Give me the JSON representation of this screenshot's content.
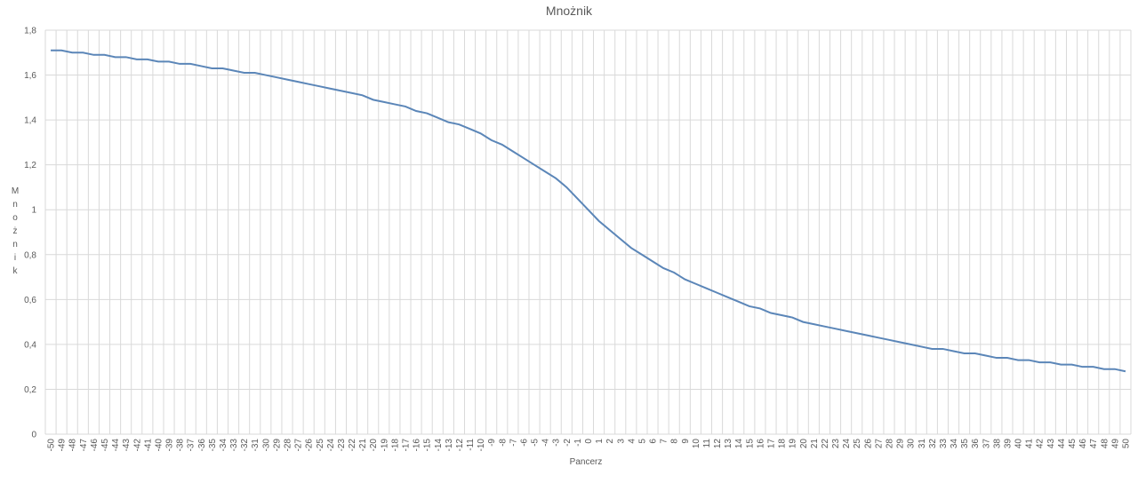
{
  "chart_data": {
    "type": "line",
    "title": "Mnożnik",
    "x_label": "Pancerz",
    "y_label": "Mnożnik",
    "categories": [
      "-50",
      "-49",
      "-48",
      "-47",
      "-46",
      "-45",
      "-44",
      "-43",
      "-42",
      "-41",
      "-40",
      "-39",
      "-38",
      "-37",
      "-36",
      "-35",
      "-34",
      "-33",
      "-32",
      "-31",
      "-30",
      "-29",
      "-28",
      "-27",
      "-26",
      "-25",
      "-24",
      "-23",
      "-22",
      "-21",
      "-20",
      "-19",
      "-18",
      "-17",
      "-16",
      "-15",
      "-14",
      "-13",
      "-12",
      "-11",
      "-10",
      "-9",
      "-8",
      "-7",
      "-6",
      "-5",
      "-4",
      "-3",
      "-2",
      "-1",
      "0",
      "1",
      "2",
      "3",
      "4",
      "5",
      "6",
      "7",
      "8",
      "9",
      "10",
      "11",
      "12",
      "13",
      "14",
      "15",
      "16",
      "17",
      "18",
      "19",
      "20",
      "21",
      "22",
      "23",
      "24",
      "25",
      "26",
      "27",
      "28",
      "29",
      "30",
      "31",
      "32",
      "33",
      "34",
      "35",
      "36",
      "37",
      "38",
      "39",
      "40",
      "41",
      "42",
      "43",
      "44",
      "45",
      "46",
      "47",
      "48",
      "49",
      "50"
    ],
    "values": [
      1.71,
      1.71,
      1.7,
      1.7,
      1.69,
      1.69,
      1.68,
      1.68,
      1.67,
      1.67,
      1.66,
      1.66,
      1.65,
      1.65,
      1.64,
      1.63,
      1.63,
      1.62,
      1.61,
      1.61,
      1.6,
      1.59,
      1.58,
      1.57,
      1.56,
      1.55,
      1.54,
      1.53,
      1.52,
      1.51,
      1.49,
      1.48,
      1.47,
      1.46,
      1.44,
      1.43,
      1.41,
      1.39,
      1.38,
      1.36,
      1.34,
      1.31,
      1.29,
      1.26,
      1.23,
      1.2,
      1.17,
      1.14,
      1.1,
      1.05,
      1.0,
      0.95,
      0.91,
      0.87,
      0.83,
      0.8,
      0.77,
      0.74,
      0.72,
      0.69,
      0.67,
      0.65,
      0.63,
      0.61,
      0.59,
      0.57,
      0.56,
      0.54,
      0.53,
      0.52,
      0.5,
      0.49,
      0.48,
      0.47,
      0.46,
      0.45,
      0.44,
      0.43,
      0.42,
      0.41,
      0.4,
      0.39,
      0.38,
      0.38,
      0.37,
      0.36,
      0.36,
      0.35,
      0.34,
      0.34,
      0.33,
      0.33,
      0.32,
      0.32,
      0.31,
      0.31,
      0.3,
      0.3,
      0.29,
      0.29,
      0.28
    ],
    "color": "#5b86b8",
    "ylim": [
      0,
      1.8
    ],
    "yticks": [
      0,
      {
        "value": 0.2,
        "label": "0,2"
      },
      {
        "value": 0.4,
        "label": "0,4"
      },
      {
        "value": 0.6,
        "label": "0,6"
      },
      {
        "value": 0.8,
        "label": "0,8"
      },
      1,
      {
        "value": 1.2,
        "label": "1,2"
      },
      {
        "value": 1.4,
        "label": "1,4"
      },
      {
        "value": 1.6,
        "label": "1,6"
      },
      {
        "value": 1.8,
        "label": "1,8"
      }
    ],
    "grid": true
  }
}
